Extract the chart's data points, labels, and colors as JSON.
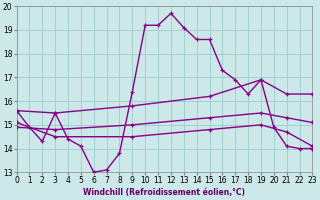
{
  "xlabel": "Windchill (Refroidissement éolien,°C)",
  "xlim": [
    0,
    23
  ],
  "ylim": [
    13,
    20
  ],
  "yticks": [
    13,
    14,
    15,
    16,
    17,
    18,
    19,
    20
  ],
  "xticks": [
    0,
    1,
    2,
    3,
    4,
    5,
    6,
    7,
    8,
    9,
    10,
    11,
    12,
    13,
    14,
    15,
    16,
    17,
    18,
    19,
    20,
    21,
    22,
    23
  ],
  "bg_color": "#cce8e8",
  "grid_color": "#99cccc",
  "line_color": "#880088",
  "series": [
    {
      "x": [
        0,
        1,
        2,
        3,
        4,
        5,
        6,
        7,
        8,
        9,
        10,
        11,
        12,
        13,
        14,
        15,
        16,
        17,
        18,
        19,
        20,
        21,
        22,
        23
      ],
      "y": [
        15.6,
        14.9,
        14.3,
        15.5,
        14.4,
        14.1,
        13.0,
        13.1,
        13.8,
        16.4,
        19.2,
        19.2,
        19.7,
        19.1,
        18.6,
        18.6,
        17.3,
        16.9,
        16.3,
        16.9,
        14.9,
        14.1,
        14.0,
        14.0
      ]
    },
    {
      "x": [
        0,
        3,
        9,
        15,
        19,
        21,
        23
      ],
      "y": [
        15.6,
        15.5,
        15.8,
        16.2,
        16.9,
        16.3,
        16.3
      ]
    },
    {
      "x": [
        0,
        3,
        9,
        15,
        19,
        21,
        23
      ],
      "y": [
        14.9,
        14.8,
        15.0,
        15.3,
        15.5,
        15.3,
        15.1
      ]
    },
    {
      "x": [
        0,
        3,
        9,
        15,
        19,
        21,
        23
      ],
      "y": [
        15.1,
        14.5,
        14.5,
        14.8,
        15.0,
        14.7,
        14.1
      ]
    }
  ]
}
